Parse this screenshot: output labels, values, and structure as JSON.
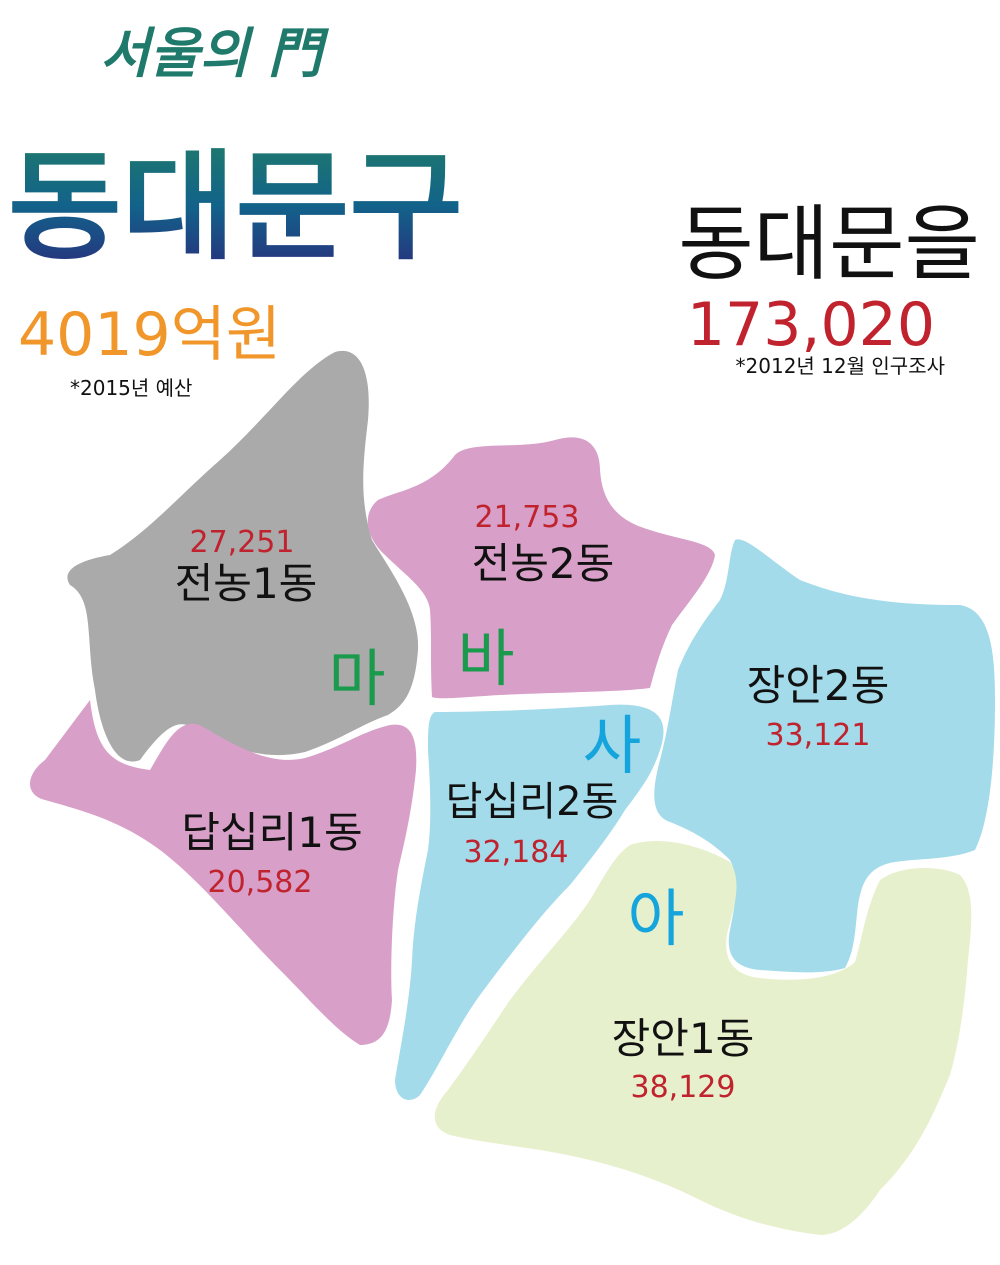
{
  "header": {
    "logo_small": "서울의 門",
    "logo_big": "동대문구",
    "logo_colors": {
      "top": "#1f7a6b",
      "mid": "#12628a",
      "bottom": "#2a2c7c"
    },
    "budget": "4019억원",
    "budget_note": "*2015년 예산",
    "budget_color": "#f0962a"
  },
  "district": {
    "name": "동대문을",
    "population": "173,020",
    "population_note": "*2012년 12월 인구조사",
    "population_color": "#c0222e"
  },
  "regions": [
    {
      "id": "jeonnong1",
      "name": "전농1동",
      "population": "27,251",
      "fill": "#aaaaaa"
    },
    {
      "id": "jeonnong2",
      "name": "전농2동",
      "population": "21,753",
      "fill": "#d8a0c8"
    },
    {
      "id": "dapsimni1",
      "name": "답십리1동",
      "population": "20,582",
      "fill": "#d8a0c8"
    },
    {
      "id": "dapsimni2",
      "name": "답십리2동",
      "population": "32,184",
      "fill": "#a3dbea"
    },
    {
      "id": "jangan2",
      "name": "장안2동",
      "population": "33,121",
      "fill": "#a3dbea"
    },
    {
      "id": "jangan1",
      "name": "장안1동",
      "population": "38,129",
      "fill": "#e7f0cd"
    }
  ],
  "zones": [
    {
      "label": "마",
      "color": "#1a9a4c"
    },
    {
      "label": "바",
      "color": "#1a9a4c"
    },
    {
      "label": "사",
      "color": "#15a4dc"
    },
    {
      "label": "아",
      "color": "#15a4dc"
    }
  ]
}
